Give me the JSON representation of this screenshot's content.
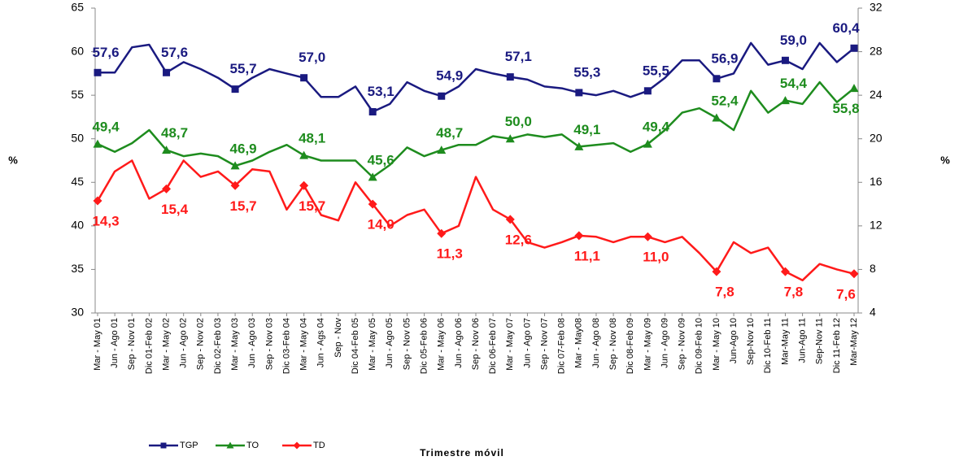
{
  "chart_data": {
    "type": "line",
    "x_title": "Trimestre móvil",
    "y_title": "%",
    "y2_title": "%",
    "categories": [
      "Mar - May 01",
      "Jun - Ago 01",
      "Sep - Nov 01",
      "Dic 01-Feb 02",
      "Mar - May 02",
      "Jun - Ago 02",
      "Sep - Nov 02",
      "Dic 02-Feb 03",
      "Mar - May 03",
      "Jun - Ago 03",
      "Sep - Nov 03",
      "Dic 03-Feb 04",
      "Mar - May 04",
      "Jun - Ags 04",
      "Sep - Nov",
      "Dic 04-Feb 05",
      "Mar - May 05",
      "Jun - Ago 05",
      "Sep - Nov 05",
      "Dic 05-Feb 06",
      "Mar - May 06",
      "Jun - Ago 06",
      "Sep - Nov 06",
      "Dic 06-Feb 07",
      "Mar - May 07",
      "Jun - Ago 07",
      "Sep - Nov 07",
      "Dic 07-Feb 08",
      "Mar - May08",
      "Jun - Ago 08",
      "Sep - Nov 08",
      "Dic 08-Feb 09",
      "Mar - May 09",
      "Jun - Ago 09",
      "Sep - Nov 09",
      "Dic 09-Feb 10",
      "Mar - May 10",
      "Jun-Ago 10",
      "Sep-Nov 10",
      "Dic 10-Feb 11",
      "Mar-May 11",
      "Jun-Ago 11",
      "Sep-Nov 11",
      "Dic 11-Feb 12",
      "Mar-May 12"
    ],
    "series": [
      {
        "name": "TGP",
        "color": "#1a1a80",
        "marker": "square",
        "axis": "y",
        "values": [
          57.6,
          57.6,
          60.5,
          60.8,
          57.6,
          58.8,
          58.0,
          57.0,
          55.7,
          57.0,
          58.0,
          57.5,
          57.0,
          54.8,
          54.8,
          56.0,
          53.1,
          54.0,
          56.5,
          55.5,
          54.9,
          56.0,
          58.0,
          57.5,
          57.1,
          56.8,
          56.0,
          55.8,
          55.3,
          55.0,
          55.5,
          54.8,
          55.5,
          57.0,
          59.0,
          59.0,
          56.9,
          57.5,
          61.0,
          58.5,
          59.0,
          58.0,
          61.0,
          58.8,
          60.4
        ],
        "value_labels": [
          "57,6",
          null,
          null,
          null,
          "57,6",
          null,
          null,
          null,
          "55,7",
          null,
          null,
          null,
          "57,0",
          null,
          null,
          null,
          "53,1",
          null,
          null,
          null,
          "54,9",
          null,
          null,
          null,
          "57,1",
          null,
          null,
          null,
          "55,3",
          null,
          null,
          null,
          "55,5",
          null,
          null,
          null,
          "56,9",
          null,
          null,
          null,
          "59,0",
          null,
          null,
          null,
          "60,4"
        ]
      },
      {
        "name": "TO",
        "color": "#1e8c1e",
        "marker": "triangle",
        "axis": "y",
        "values": [
          49.4,
          48.5,
          49.5,
          51.0,
          48.7,
          48.0,
          48.3,
          48.0,
          46.9,
          47.5,
          48.5,
          49.3,
          48.1,
          47.5,
          47.5,
          47.5,
          45.6,
          47.0,
          49.0,
          48.0,
          48.7,
          49.3,
          49.3,
          50.3,
          50.0,
          50.5,
          50.2,
          50.5,
          49.1,
          49.3,
          49.5,
          48.5,
          49.4,
          51.0,
          53.0,
          53.5,
          52.4,
          51.0,
          55.5,
          53.0,
          54.4,
          54.0,
          56.5,
          54.2,
          55.8
        ],
        "value_labels": [
          "49,4",
          null,
          null,
          null,
          "48,7",
          null,
          null,
          null,
          "46,9",
          null,
          null,
          null,
          "48,1",
          null,
          null,
          null,
          "45,6",
          null,
          null,
          null,
          "48,7",
          null,
          null,
          null,
          "50,0",
          null,
          null,
          null,
          "49,1",
          null,
          null,
          null,
          "49,4",
          null,
          null,
          null,
          "52,4",
          null,
          null,
          null,
          "54,4",
          null,
          null,
          null,
          "55,8"
        ]
      },
      {
        "name": "TD",
        "color": "#ff1a1a",
        "marker": "diamond",
        "axis": "y2",
        "values": [
          14.3,
          17.0,
          18.0,
          14.5,
          15.4,
          18.0,
          16.5,
          17.0,
          15.7,
          17.2,
          17.0,
          13.5,
          15.7,
          13.0,
          12.5,
          16.0,
          14.0,
          12.0,
          13.0,
          13.5,
          11.3,
          12.0,
          16.5,
          13.5,
          12.6,
          10.5,
          10.0,
          10.5,
          11.1,
          11.0,
          10.5,
          11.0,
          11.0,
          10.5,
          11.0,
          9.5,
          7.8,
          10.5,
          9.5,
          10.0,
          7.8,
          7.0,
          8.5,
          8.0,
          7.6
        ],
        "value_labels": [
          "14,3",
          null,
          null,
          null,
          "15,4",
          null,
          null,
          null,
          "15,7",
          null,
          null,
          null,
          "15,7",
          null,
          null,
          null,
          "14,0",
          null,
          null,
          null,
          "11,3",
          null,
          null,
          null,
          "12,6",
          null,
          null,
          null,
          "11,1",
          null,
          null,
          null,
          "11,0",
          null,
          null,
          null,
          "7,8",
          null,
          null,
          null,
          "7,8",
          null,
          null,
          null,
          "7,6"
        ]
      }
    ],
    "ylim": [
      30,
      65
    ],
    "yticks": [
      30,
      35,
      40,
      45,
      50,
      55,
      60,
      65
    ],
    "y2lim": [
      4,
      32
    ],
    "y2ticks": [
      4,
      8,
      12,
      16,
      20,
      24,
      28,
      32
    ],
    "grid": false,
    "legend": "bottom-left"
  }
}
